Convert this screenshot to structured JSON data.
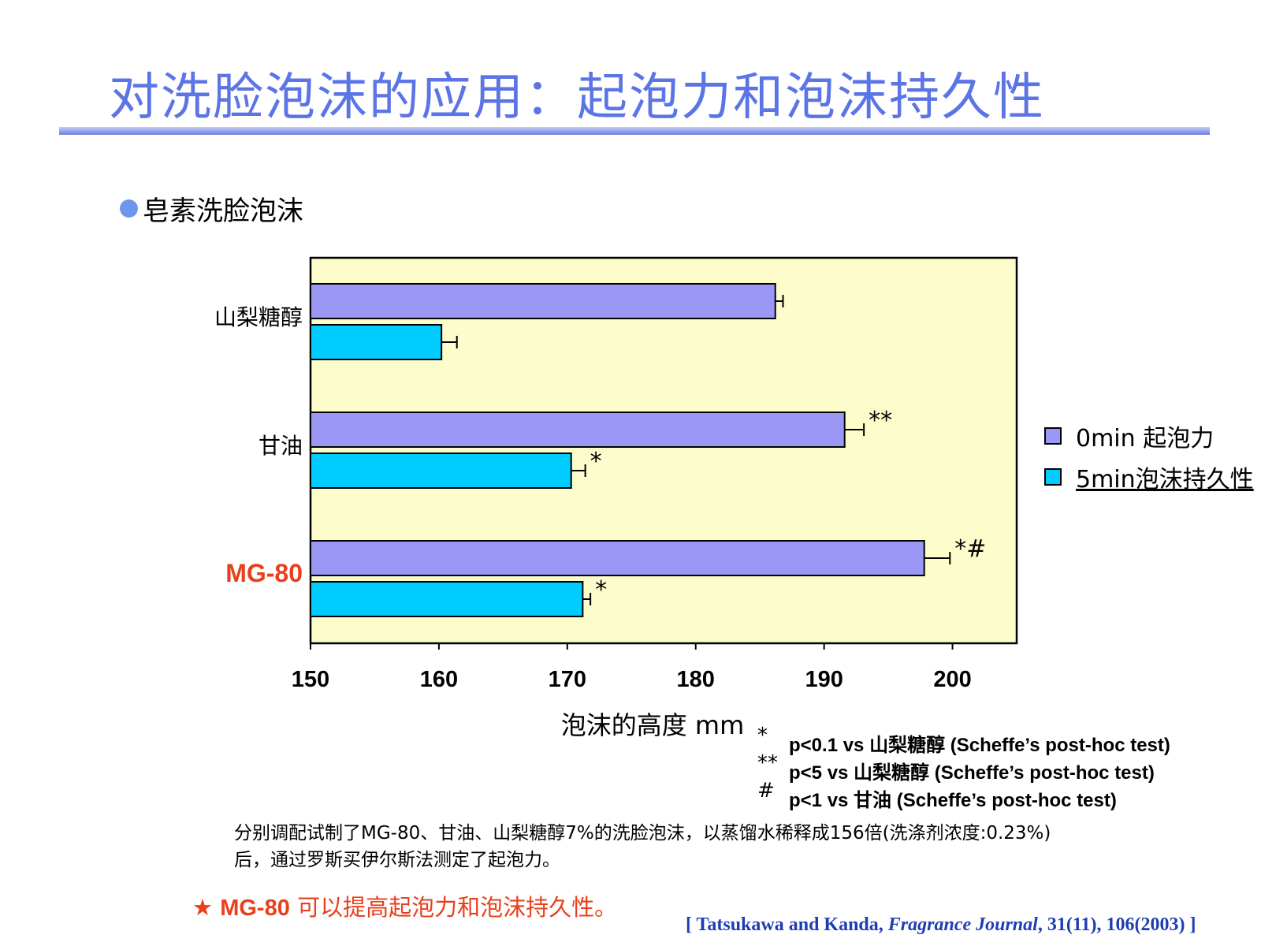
{
  "page": {
    "title": "对洗脸泡沫的应用：起泡力和泡沫持久性",
    "bullet": "皂素洗脸泡沫"
  },
  "chart_data": {
    "type": "bar",
    "orientation": "horizontal",
    "categories": [
      "山梨糖醇",
      "甘油",
      "MG-80"
    ],
    "highlight_category": "MG-80",
    "series": [
      {
        "name": "0min 起泡力",
        "values": [
          186.2,
          191.6,
          197.8
        ],
        "errors": [
          0.6,
          1.5,
          2.0
        ],
        "color": "#9b98f5"
      },
      {
        "name": "5min泡沫持久性",
        "values": [
          160.2,
          170.3,
          171.2
        ],
        "errors": [
          1.2,
          1.1,
          0.6
        ],
        "color": "#00ccff"
      }
    ],
    "significance": [
      [
        "",
        ""
      ],
      [
        "**",
        "*"
      ],
      [
        "*#",
        "*"
      ]
    ],
    "xlim": [
      150,
      205
    ],
    "xticks": [
      150,
      160,
      170,
      180,
      190,
      200
    ],
    "xlabel": "泡沫的高度 mm",
    "plot_background": "#fdfccb",
    "legend_position": "right"
  },
  "notes": [
    {
      "mark": "*",
      "text": "p<0.1 vs 山梨糖醇 (Scheffe’s post-hoc test)"
    },
    {
      "mark": "**",
      "text": "p<5 vs 山梨糖醇 (Scheffe’s post-hoc test)"
    },
    {
      "mark": "#",
      "text": "p<1 vs 甘油 (Scheffe’s post-hoc test)"
    }
  ],
  "description": "分别调配试制了MG-80、甘油、山梨糖醇7%的洗脸泡沫，以蒸馏水稀释成156倍(洗涤剂浓度:0.23%)后，通过罗斯买伊尔斯法测定了起泡力。",
  "conclusion": {
    "star": "★",
    "product": "MG-80",
    "text": "可以提高起泡力和泡沫持久性。"
  },
  "citation": {
    "open": "[ Tatsukawa and Kanda, ",
    "journal": "Fragrance Journal",
    "rest": ", 31(11), 106(2003) ]"
  },
  "colors": {
    "title": "#5b74e6",
    "accent": "#e8401c",
    "citation": "#1f3db3"
  }
}
